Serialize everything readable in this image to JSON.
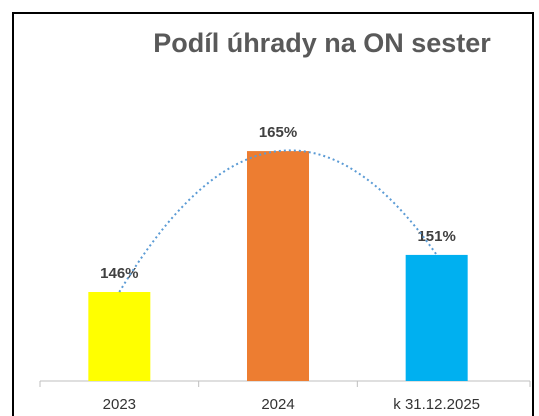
{
  "chart_data": {
    "type": "bar",
    "title": "Podíl úhrady na ON sester",
    "categories": [
      "2023",
      "2024",
      "k 31.12.2025"
    ],
    "values": [
      146,
      165,
      151
    ],
    "value_labels": [
      "146%",
      "165%",
      "151%"
    ],
    "colors": [
      "#ffff00",
      "#ed7d31",
      "#00b0f0"
    ],
    "ylim": [
      134,
      170
    ],
    "trendline": true,
    "trendline_color": "#5b9bd5"
  }
}
